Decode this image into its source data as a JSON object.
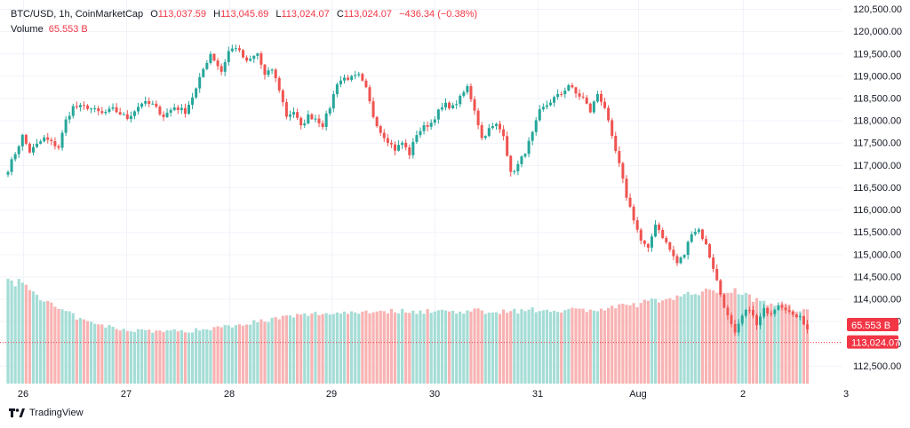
{
  "header": {
    "symbol": "BTC/USD, 1h, CoinMarketCap",
    "open_label": "O",
    "open": "113,037.59",
    "high_label": "H",
    "high": "113,045.69",
    "low_label": "L",
    "low": "113,024.07",
    "close_label": "C",
    "close": "113,024.07",
    "change": "−436.34 (−0.38%)"
  },
  "volume": {
    "label": "Volume",
    "value": "65.553 B"
  },
  "brand": {
    "name": "TradingView"
  },
  "colors": {
    "up": "#26a69a",
    "down": "#ef5350",
    "up_volume": "#a5ddd6",
    "down_volume": "#f8b3b3",
    "badge": "#f23645",
    "grid": "#f0f3fa"
  },
  "chart_data": {
    "type": "candlestick",
    "x_ticks": [
      "26",
      "27",
      "28",
      "29",
      "30",
      "31",
      "Aug",
      "2",
      "3"
    ],
    "y_ticks": [
      "120,500.00",
      "120,000.00",
      "119,500.00",
      "119,000.00",
      "118,500.00",
      "118,000.00",
      "117,500.00",
      "117,000.00",
      "116,500.00",
      "116,000.00",
      "115,500.00",
      "115,000.00",
      "114,500.00",
      "114,000.00",
      "113,500.00",
      "113,000.00",
      "112,500.00"
    ],
    "ylim": [
      112100,
      120700
    ],
    "price_line": 113024.07,
    "price_label": "113,024.07",
    "volume_label": "65.553 B",
    "close_path": [
      [
        0,
        116900
      ],
      [
        3,
        117450
      ],
      [
        4,
        117650
      ],
      [
        6,
        117300
      ],
      [
        10,
        117600
      ],
      [
        14,
        117400
      ],
      [
        16,
        118000
      ],
      [
        18,
        118300
      ],
      [
        22,
        118300
      ],
      [
        26,
        118150
      ],
      [
        29,
        118250
      ],
      [
        33,
        118050
      ],
      [
        37,
        118400
      ],
      [
        40,
        118350
      ],
      [
        43,
        118100
      ],
      [
        46,
        118300
      ],
      [
        49,
        118200
      ],
      [
        52,
        118700
      ],
      [
        54,
        119150
      ],
      [
        56,
        119500
      ],
      [
        59,
        119100
      ],
      [
        61,
        119550
      ],
      [
        63,
        119650
      ],
      [
        66,
        119300
      ],
      [
        69,
        119500
      ],
      [
        71,
        119000
      ],
      [
        73,
        119150
      ],
      [
        75,
        118700
      ],
      [
        77,
        118100
      ],
      [
        79,
        118200
      ],
      [
        81,
        117850
      ],
      [
        83,
        118100
      ],
      [
        85,
        118050
      ],
      [
        87,
        117900
      ],
      [
        89,
        118300
      ],
      [
        91,
        118850
      ],
      [
        93,
        118950
      ],
      [
        95,
        118950
      ],
      [
        97,
        119000
      ],
      [
        99,
        118700
      ],
      [
        101,
        118100
      ],
      [
        103,
        117750
      ],
      [
        105,
        117550
      ],
      [
        107,
        117350
      ],
      [
        109,
        117500
      ],
      [
        111,
        117250
      ],
      [
        113,
        117700
      ],
      [
        115,
        117850
      ],
      [
        117,
        117950
      ],
      [
        119,
        118200
      ],
      [
        121,
        118350
      ],
      [
        123,
        118300
      ],
      [
        125,
        118500
      ],
      [
        127,
        118750
      ],
      [
        129,
        118250
      ],
      [
        131,
        117600
      ],
      [
        133,
        117800
      ],
      [
        135,
        117900
      ],
      [
        137,
        117700
      ],
      [
        139,
        116800
      ],
      [
        141,
        117000
      ],
      [
        143,
        117300
      ],
      [
        145,
        117700
      ],
      [
        147,
        118200
      ],
      [
        149,
        118350
      ],
      [
        151,
        118500
      ],
      [
        153,
        118600
      ],
      [
        155,
        118800
      ],
      [
        157,
        118600
      ],
      [
        159,
        118500
      ],
      [
        161,
        118200
      ],
      [
        163,
        118600
      ],
      [
        165,
        118300
      ],
      [
        167,
        117600
      ],
      [
        169,
        117000
      ],
      [
        171,
        116300
      ],
      [
        173,
        115800
      ],
      [
        175,
        115300
      ],
      [
        177,
        115100
      ],
      [
        179,
        115700
      ],
      [
        181,
        115400
      ],
      [
        183,
        115100
      ],
      [
        185,
        114800
      ],
      [
        187,
        115000
      ],
      [
        189,
        115500
      ],
      [
        191,
        115550
      ],
      [
        193,
        115200
      ],
      [
        195,
        114700
      ],
      [
        197,
        114100
      ],
      [
        199,
        113600
      ],
      [
        201,
        113200
      ],
      [
        203,
        113600
      ],
      [
        205,
        113800
      ],
      [
        207,
        113400
      ],
      [
        209,
        113750
      ],
      [
        211,
        113700
      ],
      [
        213,
        113900
      ],
      [
        215,
        113800
      ],
      [
        217,
        113600
      ],
      [
        219,
        113650
      ],
      [
        220,
        113460
      ],
      [
        221,
        113300
      ]
    ],
    "volume_path": [
      [
        0,
        0.71
      ],
      [
        4,
        0.71
      ],
      [
        12,
        0.55
      ],
      [
        22,
        0.43
      ],
      [
        32,
        0.38
      ],
      [
        42,
        0.37
      ],
      [
        50,
        0.37
      ],
      [
        62,
        0.41
      ],
      [
        72,
        0.45
      ],
      [
        84,
        0.49
      ],
      [
        100,
        0.51
      ],
      [
        122,
        0.51
      ],
      [
        136,
        0.51
      ],
      [
        152,
        0.52
      ],
      [
        164,
        0.52
      ],
      [
        174,
        0.56
      ],
      [
        184,
        0.61
      ],
      [
        194,
        0.65
      ],
      [
        201,
        0.66
      ],
      [
        206,
        0.6
      ],
      [
        214,
        0.55
      ],
      [
        221,
        0.51
      ]
    ]
  }
}
